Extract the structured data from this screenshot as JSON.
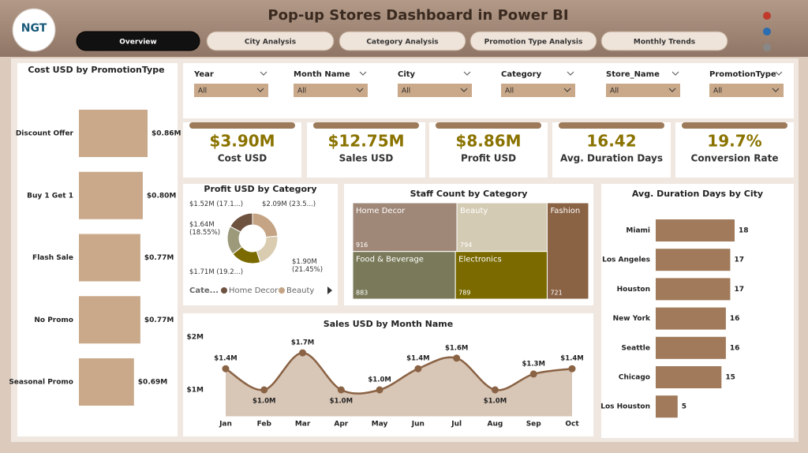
{
  "header": {
    "title": "Pop-up Stores Dashboard in Power BI",
    "logo": "NGT"
  },
  "tabs": [
    "Overview",
    "City Analysis",
    "Category Analysis",
    "Promotion Type Analysis",
    "Monthly Trends"
  ],
  "filters": [
    {
      "label": "Year",
      "value": "All"
    },
    {
      "label": "Month Name",
      "value": "All"
    },
    {
      "label": "City",
      "value": "All"
    },
    {
      "label": "Category",
      "value": "All"
    },
    {
      "label": "Store_Name",
      "value": "All"
    },
    {
      "label": "PromotionType",
      "value": "All"
    }
  ],
  "kpis": [
    {
      "value": "$3.90M",
      "label": "Cost USD"
    },
    {
      "value": "$12.75M",
      "label": "Sales USD"
    },
    {
      "value": "$8.86M",
      "label": "Profit USD"
    },
    {
      "value": "16.42",
      "label": "Avg. Duration Days"
    },
    {
      "value": "19.7%",
      "label": "Conversion Rate"
    }
  ],
  "chart_data": [
    {
      "type": "hbar",
      "title": "Cost USD by PromotionType",
      "categories": [
        "Discount Offer",
        "Buy 1 Get 1",
        "Flash Sale",
        "No Promo",
        "Seasonal Promo"
      ],
      "values": [
        0.86,
        0.8,
        0.77,
        0.77,
        0.69
      ],
      "value_labels": [
        "$0.86M",
        "$0.80M",
        "$0.77M",
        "$0.77M",
        "$0.69M"
      ],
      "color": "#c9a98a"
    },
    {
      "type": "donut",
      "title": "Profit USD by Category",
      "values": [
        2.09,
        1.9,
        1.71,
        1.64,
        1.52
      ],
      "value_labels": [
        "$2.09M (23.5...)",
        "$1.90M (21.45%)",
        "$1.71M (19.2...)",
        "$1.64M (18.55%)",
        "$1.52M (17.1...)"
      ],
      "colors": [
        "#c4a484",
        "#d9ccb0",
        "#7a6a00",
        "#9c9a7a",
        "#6e5240"
      ],
      "legend_title": "Cate...",
      "legend": [
        {
          "name": "Home Decor",
          "color": "#6e5240"
        },
        {
          "name": "Beauty",
          "color": "#c4a484"
        }
      ]
    },
    {
      "type": "treemap",
      "title": "Staff Count by Category",
      "categories": [
        "Home Decor",
        "Beauty",
        "Food & Beverage",
        "Electronics",
        "Fashion"
      ],
      "values": [
        916,
        794,
        883,
        789,
        721
      ],
      "colors": [
        "#a08878",
        "#d4cbb4",
        "#7a7a5a",
        "#7a6a00",
        "#8a6244"
      ]
    },
    {
      "type": "hbar",
      "title": "Avg. Duration Days by City",
      "categories": [
        "Miami",
        "Los Angeles",
        "Houston",
        "New York",
        "Seattle",
        "Chicago",
        "Los Houston"
      ],
      "values": [
        18,
        17,
        17,
        16,
        16,
        15,
        5
      ],
      "color": "#a07a5a"
    },
    {
      "type": "area",
      "title": "Sales USD by Month Name",
      "categories": [
        "Jan",
        "Feb",
        "Mar",
        "Apr",
        "May",
        "Jun",
        "Jul",
        "Aug",
        "Sep",
        "Oct"
      ],
      "values": [
        1.4,
        1.0,
        1.7,
        1.0,
        1.0,
        1.4,
        1.6,
        1.0,
        1.3,
        1.4
      ],
      "value_labels": [
        "$1.4M",
        "$1.0M",
        "$1.7M",
        "$1.0M",
        "$1.0M",
        "$1.4M",
        "$1.6M",
        "$1.0M",
        "$1.3M",
        "$1.4M"
      ],
      "ylim": [
        0.5,
        2
      ],
      "yticks": [
        {
          "value": 2,
          "label": "$2M"
        },
        {
          "value": 1,
          "label": "$1M"
        }
      ],
      "color": "#8a6244",
      "fill": "#d8c6b6"
    }
  ]
}
